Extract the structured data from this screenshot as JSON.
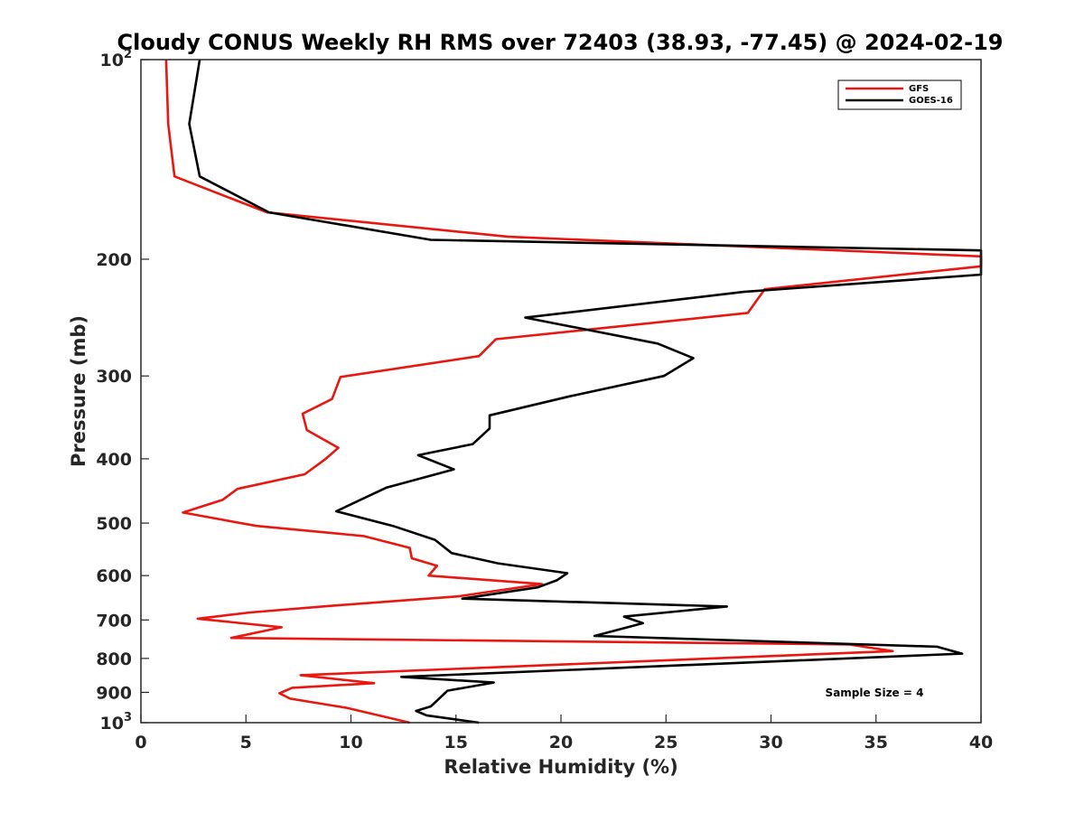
{
  "chart_data": {
    "type": "line",
    "title": "Cloudy CONUS Weekly RH RMS over 72403 (38.93, -77.45) @ 2024-02-19",
    "xlabel": "Relative Humidity (%)",
    "ylabel": "Pressure (mb)",
    "xlim": [
      0,
      40
    ],
    "ylim": [
      100,
      1000
    ],
    "y_scale": "log",
    "y_reversed": true,
    "x_ticks": [
      "0",
      "5",
      "10",
      "15",
      "20",
      "25",
      "30",
      "35",
      "40"
    ],
    "y_ticks": [
      {
        "value": 100,
        "base": "10",
        "exp": "2"
      },
      {
        "value": 200,
        "label": "200"
      },
      {
        "value": 300,
        "label": "300"
      },
      {
        "value": 400,
        "label": "400"
      },
      {
        "value": 500,
        "label": "500"
      },
      {
        "value": 600,
        "label": "600"
      },
      {
        "value": 700,
        "label": "700"
      },
      {
        "value": 800,
        "label": "800"
      },
      {
        "value": 900,
        "label": "900"
      },
      {
        "value": 1000,
        "base": "10",
        "exp": "3"
      }
    ],
    "legend": {
      "placement": "top-right",
      "entries": [
        "GFS",
        "GOES-16"
      ]
    },
    "annotation": "Sample Size = 4",
    "series": [
      {
        "name": "GFS",
        "color": "#e8170f",
        "points": [
          [
            1.2,
            100
          ],
          [
            1.3,
            125
          ],
          [
            1.6,
            150
          ],
          [
            6.0,
            170
          ],
          [
            17.5,
            185
          ],
          [
            40,
            198
          ],
          [
            40,
            205
          ],
          [
            29.7,
            222
          ],
          [
            28.9,
            241
          ],
          [
            16.9,
            264
          ],
          [
            16.1,
            280
          ],
          [
            9.5,
            301
          ],
          [
            9.1,
            325
          ],
          [
            7.7,
            342
          ],
          [
            7.9,
            362
          ],
          [
            9.4,
            385
          ],
          [
            8.8,
            400
          ],
          [
            7.8,
            422
          ],
          [
            4.6,
            444
          ],
          [
            3.9,
            461
          ],
          [
            2.0,
            482
          ],
          [
            5.5,
            505
          ],
          [
            10.6,
            523
          ],
          [
            12.8,
            545
          ],
          [
            12.9,
            565
          ],
          [
            14.1,
            580
          ],
          [
            13.7,
            600
          ],
          [
            19.1,
            618
          ],
          [
            15.1,
            645
          ],
          [
            8.9,
            667
          ],
          [
            5.2,
            682
          ],
          [
            2.7,
            697
          ],
          [
            6.7,
            718
          ],
          [
            4.3,
            745
          ],
          [
            33.7,
            762
          ],
          [
            35.8,
            780
          ],
          [
            7.6,
            848
          ],
          [
            11.1,
            872
          ],
          [
            7.2,
            886
          ],
          [
            6.6,
            903
          ],
          [
            7.1,
            920
          ],
          [
            9.8,
            950
          ],
          [
            12.8,
            1000
          ]
        ]
      },
      {
        "name": "GOES-16",
        "color": "#000000",
        "points": [
          [
            2.8,
            100
          ],
          [
            2.3,
            125
          ],
          [
            2.8,
            150
          ],
          [
            6.1,
            170
          ],
          [
            13.8,
            187
          ],
          [
            40,
            194
          ],
          [
            40,
            211
          ],
          [
            28.7,
            224
          ],
          [
            18.3,
            245
          ],
          [
            24.6,
            268
          ],
          [
            26.3,
            282
          ],
          [
            24.9,
            300
          ],
          [
            20.4,
            322
          ],
          [
            16.6,
            344
          ],
          [
            16.6,
            360
          ],
          [
            15.8,
            380
          ],
          [
            13.2,
            395
          ],
          [
            14.9,
            415
          ],
          [
            11.7,
            442
          ],
          [
            9.3,
            480
          ],
          [
            12.0,
            505
          ],
          [
            14.0,
            530
          ],
          [
            14.8,
            555
          ],
          [
            17.0,
            575
          ],
          [
            20.3,
            595
          ],
          [
            19.8,
            610
          ],
          [
            18.9,
            625
          ],
          [
            15.3,
            650
          ],
          [
            27.9,
            668
          ],
          [
            23.0,
            692
          ],
          [
            23.9,
            708
          ],
          [
            21.6,
            740
          ],
          [
            37.9,
            768
          ],
          [
            39.1,
            787
          ],
          [
            12.4,
            853
          ],
          [
            16.8,
            870
          ],
          [
            14.6,
            895
          ],
          [
            14.2,
            920
          ],
          [
            13.8,
            945
          ],
          [
            13.1,
            960
          ],
          [
            13.6,
            975
          ],
          [
            16.1,
            1000
          ]
        ]
      }
    ]
  }
}
